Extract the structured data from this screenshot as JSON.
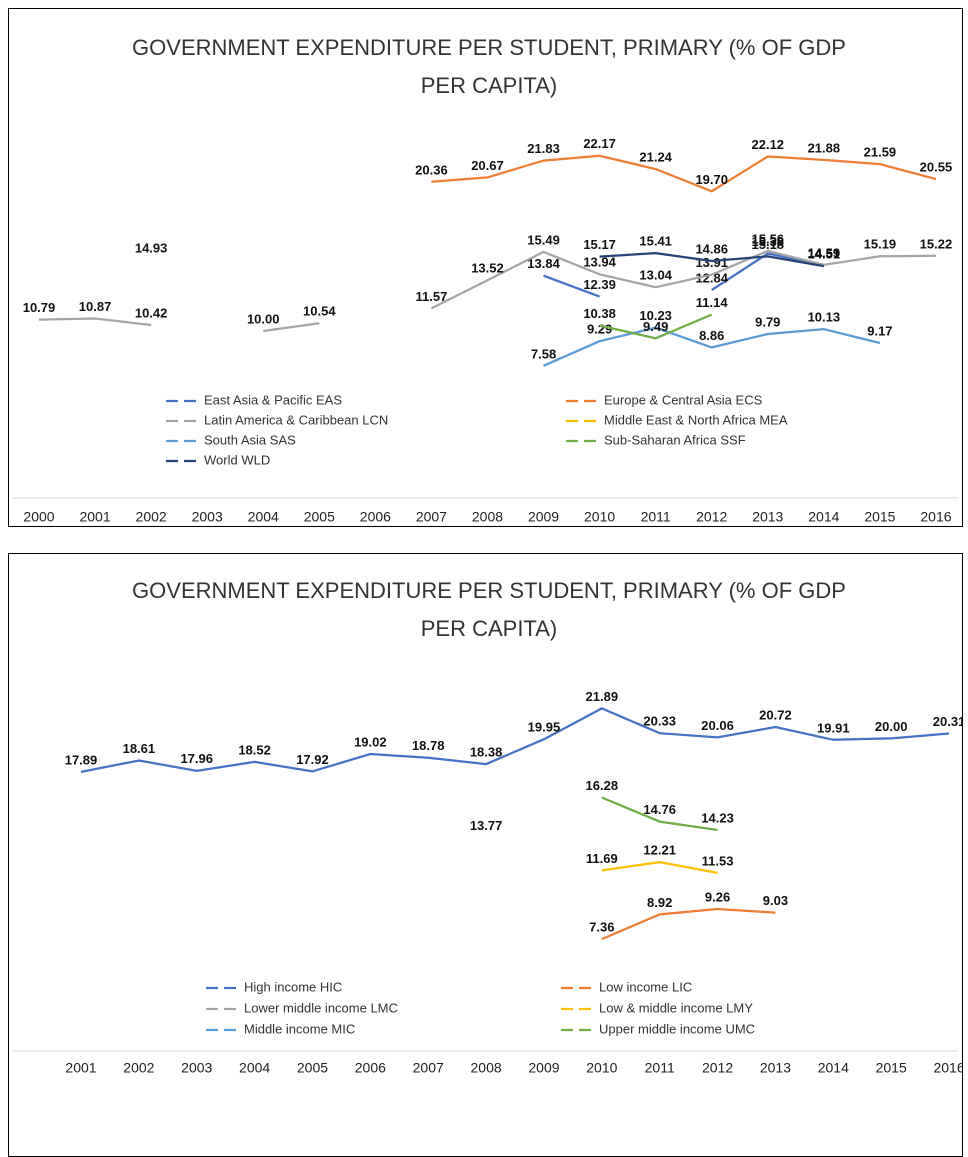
{
  "chart_data": [
    {
      "type": "line",
      "title": "GOVERNMENT EXPENDITURE PER STUDENT, PRIMARY (% OF GDP PER CAPITA)",
      "categories": [
        "2000",
        "2001",
        "2002",
        "2003",
        "2004",
        "2005",
        "2006",
        "2007",
        "2008",
        "2009",
        "2010",
        "2011",
        "2012",
        "2013",
        "2014",
        "2015",
        "2016"
      ],
      "ylim": [
        0,
        25
      ],
      "series": [
        {
          "name": "East Asia & Pacific EAS",
          "color": "#4472c4",
          "values": [
            null,
            null,
            null,
            null,
            null,
            null,
            null,
            null,
            null,
            13.84,
            12.39,
            null,
            12.84,
            15.38,
            14.59,
            null,
            null
          ],
          "value_labels": [
            null,
            null,
            null,
            null,
            null,
            null,
            null,
            null,
            null,
            "13.84",
            "12.39",
            null,
            "12.84",
            "15.38",
            "14.59",
            null,
            null
          ]
        },
        {
          "name": "Europe & Central Asia ECS",
          "color": "#ed7d31",
          "values": [
            null,
            null,
            null,
            null,
            null,
            null,
            null,
            20.36,
            20.67,
            21.83,
            22.17,
            21.24,
            19.7,
            22.12,
            21.88,
            21.59,
            20.55
          ],
          "value_labels": [
            null,
            null,
            null,
            null,
            null,
            null,
            null,
            "20.36",
            "20.67",
            "21.83",
            "22.17",
            "21.24",
            "19.70",
            "22.12",
            "21.88",
            "21.59",
            "20.55"
          ]
        },
        {
          "name": "Latin America & Caribbean LCN",
          "color": "#a5a5a5",
          "values": [
            10.79,
            10.87,
            10.42,
            null,
            10,
            10.54,
            null,
            11.57,
            13.52,
            15.49,
            13.94,
            13.04,
            13.91,
            15.56,
            14.59,
            15.19,
            15.22
          ],
          "value_labels": [
            "10.79",
            "10.87",
            "10.42",
            null,
            "10.00",
            "10.54",
            null,
            "11.57",
            "13.52",
            "15.49",
            "13.94",
            "13.04",
            "13.91",
            "15.56",
            "14.59",
            "15.19",
            "15.22"
          ]
        },
        {
          "name": "Middle East & North Africa MEA",
          "color": "#ffc000",
          "values": [
            null,
            null,
            14.93,
            null,
            null,
            null,
            null,
            null,
            null,
            null,
            null,
            null,
            null,
            null,
            null,
            null,
            null
          ],
          "value_labels": [
            null,
            null,
            "14.93",
            null,
            null,
            null,
            null,
            null,
            null,
            null,
            null,
            null,
            null,
            null,
            null,
            null,
            null
          ]
        },
        {
          "name": "South Asia SAS",
          "color": "#5b9bd5",
          "values": [
            null,
            null,
            null,
            null,
            null,
            null,
            null,
            null,
            null,
            7.58,
            9.29,
            10.23,
            8.86,
            9.79,
            10.13,
            9.17,
            null
          ],
          "value_labels": [
            null,
            null,
            null,
            null,
            null,
            null,
            null,
            null,
            null,
            "7.58",
            "9.29",
            "10.23",
            "8.86",
            "9.79",
            "10.13",
            "9.17",
            null
          ]
        },
        {
          "name": "Sub-Saharan Africa SSF",
          "color": "#70ad47",
          "values": [
            null,
            null,
            null,
            null,
            null,
            null,
            null,
            null,
            null,
            null,
            10.38,
            9.49,
            11.14,
            null,
            null,
            null,
            null
          ],
          "value_labels": [
            null,
            null,
            null,
            null,
            null,
            null,
            null,
            null,
            null,
            null,
            "10.38",
            "9.49",
            "11.14",
            null,
            null,
            null,
            null
          ]
        },
        {
          "name": "World WLD",
          "color": "#264478",
          "values": [
            null,
            null,
            null,
            null,
            null,
            null,
            null,
            null,
            null,
            null,
            15.17,
            15.41,
            14.86,
            15.18,
            14.51,
            null,
            null
          ],
          "value_labels": [
            null,
            null,
            null,
            null,
            null,
            null,
            null,
            null,
            null,
            null,
            "15.17",
            "15.41",
            "14.86",
            "15.18",
            "14.51",
            null,
            null
          ]
        }
      ]
    },
    {
      "type": "line",
      "title": "GOVERNMENT EXPENDITURE PER STUDENT, PRIMARY (% OF GDP PER CAPITA)",
      "categories": [
        "2001",
        "2002",
        "2003",
        "2004",
        "2005",
        "2006",
        "2007",
        "2008",
        "2009",
        "2010",
        "2011",
        "2012",
        "2013",
        "2014",
        "2015",
        "2016"
      ],
      "ylim": [
        0,
        25
      ],
      "series": [
        {
          "name": "High income HIC",
          "color": "#4472c4",
          "values": [
            17.89,
            18.61,
            17.96,
            18.52,
            17.92,
            19.02,
            18.78,
            18.38,
            19.95,
            21.89,
            20.33,
            20.06,
            20.72,
            19.91,
            20,
            20.31
          ],
          "value_labels": [
            "17.89",
            "18.61",
            "17.96",
            "18.52",
            "17.92",
            "19.02",
            "18.78",
            "18.38",
            "19.95",
            "21.89",
            "20.33",
            "20.06",
            "20.72",
            "19.91",
            "20.00",
            "20.31"
          ]
        },
        {
          "name": "Low income LIC",
          "color": "#ed7d31",
          "values": [
            null,
            null,
            null,
            null,
            null,
            null,
            null,
            null,
            null,
            7.36,
            8.92,
            9.26,
            9.03,
            null,
            null,
            null
          ],
          "value_labels": [
            null,
            null,
            null,
            null,
            null,
            null,
            null,
            null,
            null,
            "7.36",
            "8.92",
            "9.26",
            "9.03",
            null,
            null,
            null
          ]
        },
        {
          "name": "Lower middle income LMC",
          "color": "#a5a5a5",
          "values": [
            null,
            null,
            null,
            null,
            null,
            null,
            null,
            13.77,
            null,
            null,
            null,
            null,
            null,
            null,
            null,
            null
          ],
          "value_labels": [
            null,
            null,
            null,
            null,
            null,
            null,
            null,
            "13.77",
            null,
            null,
            null,
            null,
            null,
            null,
            null,
            null
          ]
        },
        {
          "name": "Low & middle income LMY",
          "color": "#ffc000",
          "values": [
            null,
            null,
            null,
            null,
            null,
            null,
            null,
            null,
            null,
            11.69,
            12.21,
            11.53,
            null,
            null,
            null,
            null
          ],
          "value_labels": [
            null,
            null,
            null,
            null,
            null,
            null,
            null,
            null,
            null,
            "11.69",
            "12.21",
            "11.53",
            null,
            null,
            null,
            null
          ]
        },
        {
          "name": "Middle income MIC",
          "color": "#5b9bd5",
          "values": [
            null,
            null,
            null,
            null,
            null,
            null,
            null,
            null,
            null,
            null,
            null,
            null,
            null,
            null,
            null,
            null
          ],
          "value_labels": [
            null,
            null,
            null,
            null,
            null,
            null,
            null,
            null,
            null,
            null,
            null,
            null,
            null,
            null,
            null,
            null
          ]
        },
        {
          "name": "Upper middle income UMC",
          "color": "#70ad47",
          "values": [
            null,
            null,
            null,
            null,
            null,
            null,
            null,
            null,
            null,
            16.28,
            14.76,
            14.23,
            null,
            null,
            null,
            null
          ],
          "value_labels": [
            null,
            null,
            null,
            null,
            null,
            null,
            null,
            null,
            null,
            "16.28",
            "14.76",
            "14.23",
            null,
            null,
            null,
            null
          ]
        }
      ]
    }
  ]
}
